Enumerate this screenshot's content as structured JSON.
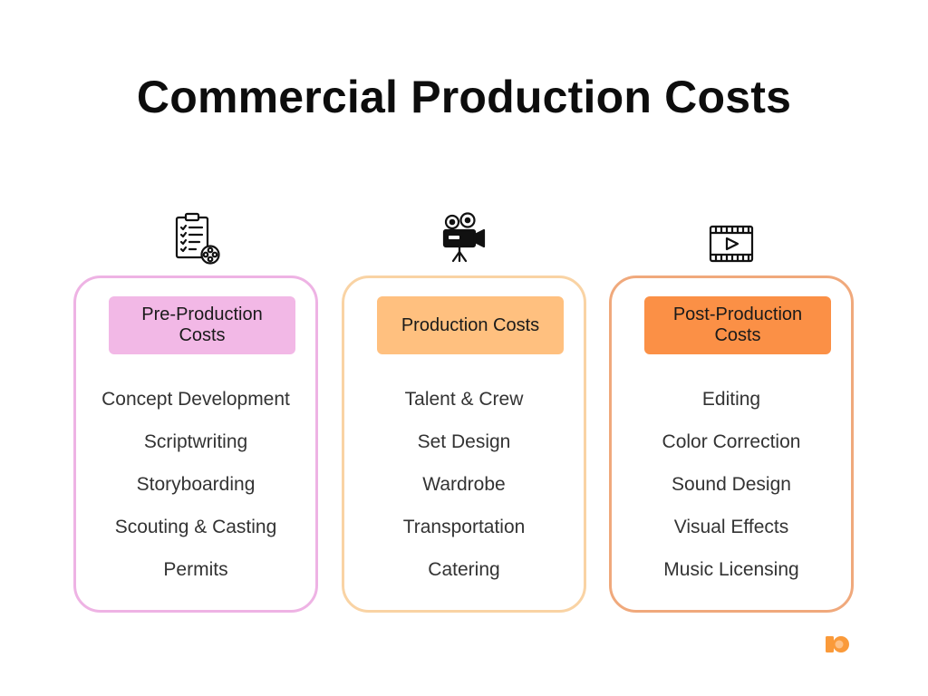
{
  "title": "Commercial Production Costs",
  "colors": {
    "pre_border": "#eeb3e4",
    "pre_badge": "#f2b8e6",
    "prod_border": "#f9d3a4",
    "prod_badge": "#ffc07f",
    "post_border": "#f0a97c",
    "post_badge": "#fb9046",
    "logo": "#fa9a3a"
  },
  "columns": [
    {
      "icon": "clipboard-checklist-film-reel-icon",
      "heading": "Pre-Production Costs",
      "items": [
        "Concept Development",
        "Scriptwriting",
        "Storyboarding",
        "Scouting & Casting",
        "Permits"
      ]
    },
    {
      "icon": "movie-camera-icon",
      "heading": "Production Costs",
      "items": [
        "Talent & Crew",
        "Set Design",
        "Wardrobe",
        "Transportation",
        "Catering"
      ]
    },
    {
      "icon": "film-strip-play-icon",
      "heading": "Post-Production Costs",
      "items": [
        "Editing",
        "Color Correction",
        "Sound Design",
        "Visual Effects",
        "Music Licensing"
      ]
    }
  ]
}
